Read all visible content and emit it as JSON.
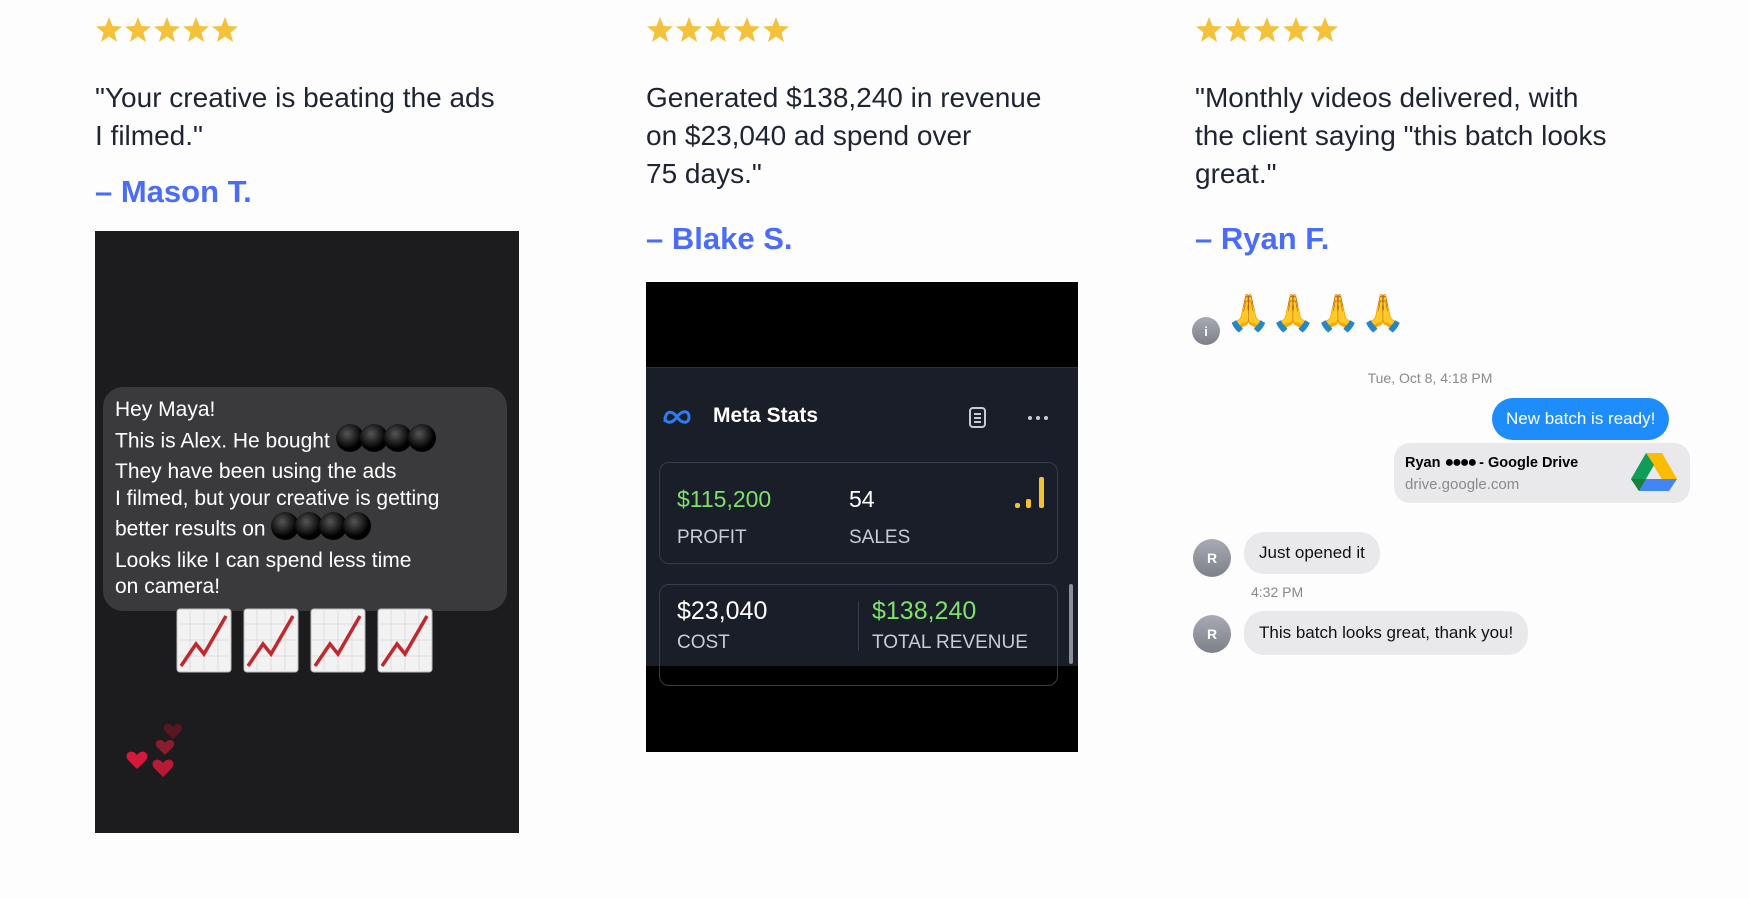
{
  "testimonials": [
    {
      "quote_lines": [
        "\"Your creative is beating the ads",
        "I filmed.\""
      ],
      "author": "– Mason T.",
      "screenshot": {
        "message_lines": [
          "Hey Maya!",
          "This is Alex. He bought",
          "They have been using the ads",
          "I filmed, but your creative is getting",
          "better results on",
          "Looks like I can spend less time",
          "on camera!"
        ]
      }
    },
    {
      "quote_lines": [
        "Generated $138,240 in revenue",
        "on $23,040 ad spend over",
        "75 days.\""
      ],
      "author": "– Blake S.",
      "screenshot": {
        "title": "Meta Stats",
        "profit": "$115,200",
        "profit_label": "PROFIT",
        "sales": "54",
        "sales_label": "SALES",
        "cost": "$23,040",
        "cost_label": "COST",
        "revenue": "$138,240",
        "revenue_label": "TOTAL REVENUE"
      }
    },
    {
      "quote_lines": [
        "\"Monthly videos delivered, with",
        "the client saying \"this batch looks",
        "great.\""
      ],
      "author": "– Ryan F.",
      "screenshot": {
        "info_avatar": "i",
        "emoji": "🙏🙏🙏🙏",
        "timestamp": "Tue, Oct 8, 4:18 PM",
        "sent_message": "New batch is ready!",
        "link_name": "Ryan",
        "link_suffix": "- Google Drive",
        "link_domain": "drive.google.com",
        "avatar": "R",
        "reply_1": "Just opened it",
        "reply_time": "4:32 PM",
        "reply_2": "This batch looks great, thank you!"
      }
    }
  ]
}
